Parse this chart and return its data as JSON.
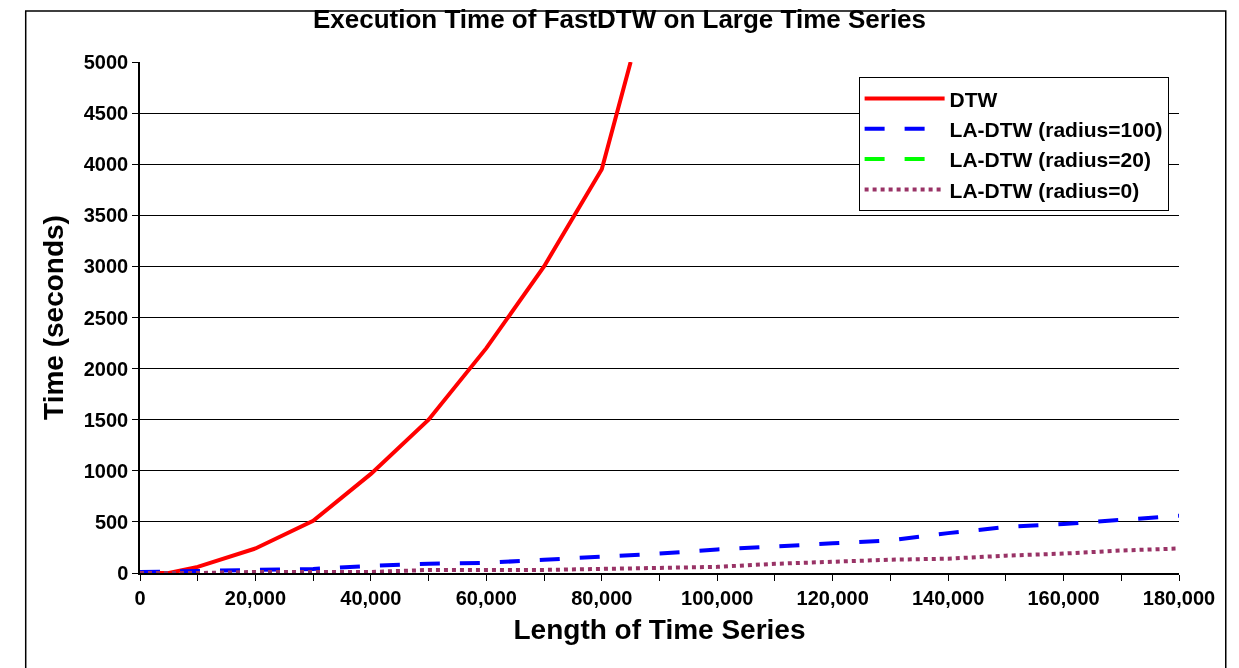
{
  "chart_data": {
    "type": "line",
    "title": "Execution Time of FastDTW on Large Time Series",
    "xlabel": "Length of Time Series",
    "ylabel": "Time (seconds)",
    "xlim": [
      0,
      180000
    ],
    "ylim": [
      0,
      5000
    ],
    "xticks": [
      0,
      {
        "value": 20000,
        "label": "20,000"
      },
      {
        "value": 40000,
        "label": "40,000"
      },
      {
        "value": 60000,
        "label": "60,000"
      },
      {
        "value": 80000,
        "label": "80,000"
      },
      {
        "value": 100000,
        "label": "100,000"
      },
      {
        "value": 120000,
        "label": "120,000"
      },
      {
        "value": 140000,
        "label": "140,000"
      },
      {
        "value": 160000,
        "label": "160,000"
      },
      {
        "value": 180000,
        "label": "180,000"
      }
    ],
    "yticks": [
      0,
      500,
      1000,
      1500,
      2000,
      2500,
      3000,
      3500,
      4000,
      4500,
      5000
    ],
    "grid": "y",
    "legend": "top right",
    "series": [
      {
        "name": "DTW",
        "color": "#ff0000",
        "line_style": "solid",
        "x": [
          0,
          5000,
          10000,
          20000,
          30000,
          40000,
          50000,
          60000,
          70000,
          80000,
          85000
        ],
        "values": [
          0,
          0,
          60,
          240,
          510,
          970,
          1500,
          2200,
          3000,
          3950,
          5000
        ]
      },
      {
        "name": "LA-DTW (radius=100)",
        "color": "#0000ff",
        "line_style": "dashed",
        "x": [
          0,
          10000,
          20000,
          30000,
          40000,
          50000,
          60000,
          70000,
          80000,
          90000,
          100000,
          110000,
          120000,
          130000,
          140000,
          150000,
          160000,
          170000,
          180000
        ],
        "values": [
          10,
          20,
          30,
          40,
          70,
          90,
          100,
          130,
          160,
          190,
          230,
          260,
          290,
          320,
          390,
          450,
          480,
          520,
          560
        ]
      },
      {
        "name": "LA-DTW (radius=20)",
        "color": "#00ff00",
        "line_style": "dashed"
      },
      {
        "name": "LA-DTW (radius=0)",
        "color": "#993366",
        "line_style": "dotted",
        "x": [
          0,
          10000,
          20000,
          30000,
          40000,
          50000,
          60000,
          70000,
          80000,
          90000,
          100000,
          110000,
          120000,
          130000,
          140000,
          150000,
          160000,
          170000,
          180000
        ],
        "values": [
          0,
          0,
          10,
          10,
          10,
          30,
          30,
          30,
          40,
          50,
          60,
          90,
          110,
          130,
          140,
          170,
          190,
          220,
          240
        ]
      }
    ]
  }
}
